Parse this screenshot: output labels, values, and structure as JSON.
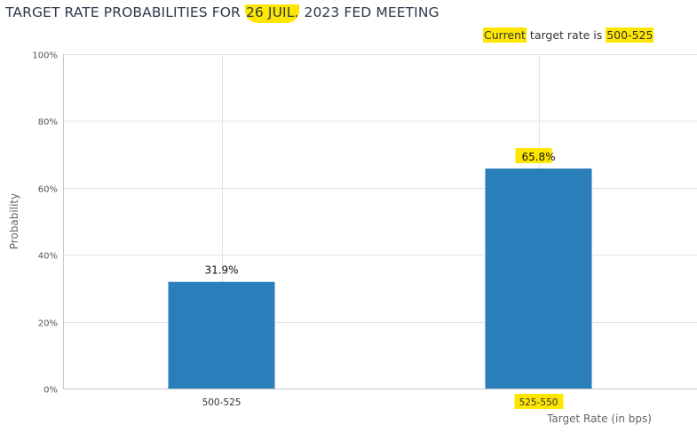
{
  "title": {
    "before": "TARGET RATE PROBABILITIES FOR ",
    "highlight": "26 JUIL.",
    "after": " 2023 FED MEETING"
  },
  "current_rate": {
    "label_highlight": "Current",
    "label_rest": " target rate is ",
    "value": "500-525"
  },
  "highlight_color": "#ffe600",
  "chart_data": {
    "type": "bar",
    "categories": [
      "500-525",
      "525-550"
    ],
    "values": [
      31.9,
      65.8
    ],
    "data_labels": [
      "31.9%",
      "65.8%"
    ],
    "highlighted_category": "525-550",
    "ylabel": "Probability",
    "xlabel": "Target Rate (in bps)",
    "ylim": [
      0,
      100
    ],
    "yticks": [
      0,
      20,
      40,
      60,
      80,
      100
    ],
    "ytick_labels": [
      "0%",
      "20%",
      "40%",
      "60%",
      "80%",
      "100%"
    ],
    "grid": true,
    "bar_color": "#2a7fba"
  }
}
